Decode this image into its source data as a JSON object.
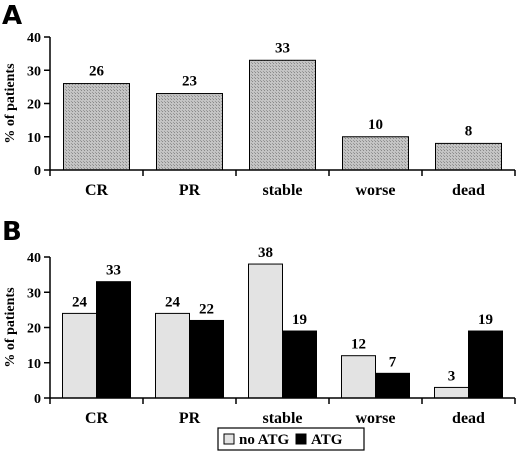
{
  "chart_data": [
    {
      "type": "bar",
      "panel": "A",
      "categories": [
        "CR",
        "PR",
        "stable",
        "worse",
        "dead"
      ],
      "values": [
        26,
        23,
        33,
        10,
        8
      ],
      "data_labels": [
        "26",
        "23",
        "33",
        "10",
        "8"
      ],
      "ylabel": "% of patients",
      "ylim": [
        0,
        40
      ],
      "yticks": [
        "0",
        "10",
        "20",
        "30",
        "40"
      ],
      "colors": {
        "bar": "#b0b0b0",
        "stroke": "#000000"
      },
      "grid": false
    },
    {
      "type": "bar",
      "panel": "B",
      "categories": [
        "CR",
        "PR",
        "stable",
        "worse",
        "dead"
      ],
      "series": [
        {
          "name": "no ATG",
          "values": [
            24,
            24,
            38,
            12,
            3
          ],
          "labels": [
            "24",
            "24",
            "38",
            "12",
            "3"
          ],
          "color": "#e3e3e3"
        },
        {
          "name": "ATG",
          "values": [
            33,
            22,
            19,
            7,
            19
          ],
          "labels": [
            "33",
            "22",
            "19",
            "7",
            "19"
          ],
          "color": "#000000"
        }
      ],
      "ylabel": "% of patients",
      "ylim": [
        0,
        40
      ],
      "yticks": [
        "0",
        "10",
        "20",
        "30",
        "40"
      ],
      "legend": "bottom",
      "grid": false
    }
  ]
}
